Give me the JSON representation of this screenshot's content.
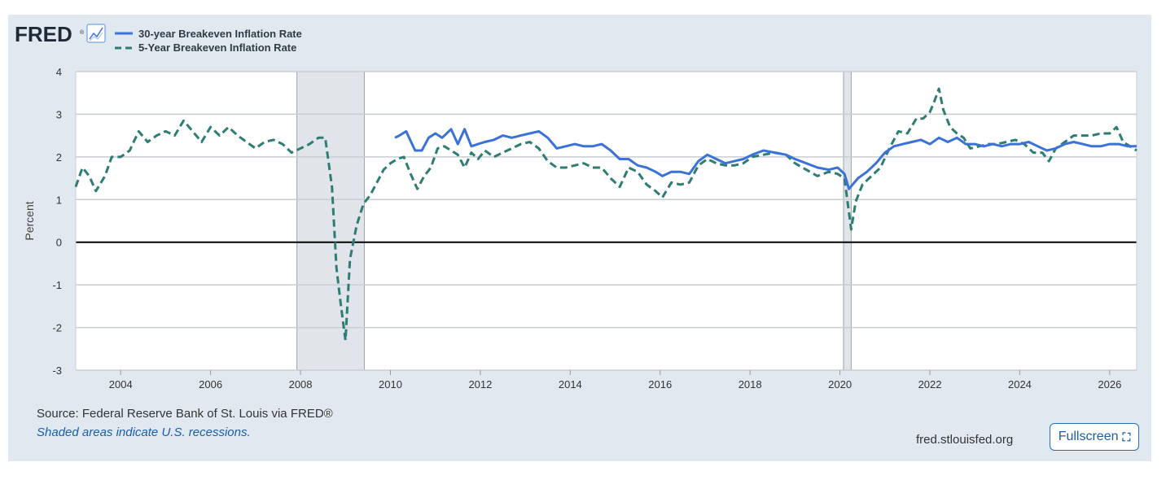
{
  "brand": {
    "logo": "FRED",
    "logo_mark": "®",
    "graph_icon": "chart-line-icon"
  },
  "footer": {
    "source": "Source: Federal Reserve Bank of St. Louis via FRED®",
    "shaded_note": "Shaded areas indicate U.S. recessions.",
    "site": "fred.stlouisfed.org",
    "fullscreen_label": "Fullscreen",
    "fullscreen_icon": "expand-icon"
  },
  "colors": {
    "series30": "#3a72d8",
    "series5": "#2e7d74",
    "recession": "#e1e4e8",
    "zero_line": "#000000"
  },
  "chart_data": {
    "type": "line",
    "ylabel": "Percent",
    "xlim": [
      2003.0,
      2026.6
    ],
    "ylim": [
      -3,
      4
    ],
    "yticks": [
      -3,
      -2,
      -1,
      0,
      1,
      2,
      3,
      4
    ],
    "xticks": [
      2004,
      2006,
      2008,
      2010,
      2012,
      2014,
      2016,
      2018,
      2020,
      2022,
      2024,
      2026
    ],
    "grid": true,
    "legend_position": "top-left",
    "recessions": [
      [
        2007.92,
        2009.42
      ],
      [
        2020.08,
        2020.25
      ]
    ],
    "series": [
      {
        "name": "30-year Breakeven Inflation Rate",
        "style": "solid",
        "x": [
          2010.1,
          2010.2,
          2010.35,
          2010.55,
          2010.7,
          2010.85,
          2011.0,
          2011.15,
          2011.35,
          2011.5,
          2011.65,
          2011.8,
          2011.95,
          2012.1,
          2012.3,
          2012.5,
          2012.7,
          2012.9,
          2013.1,
          2013.3,
          2013.5,
          2013.7,
          2013.9,
          2014.1,
          2014.3,
          2014.5,
          2014.7,
          2014.9,
          2015.1,
          2015.3,
          2015.5,
          2015.7,
          2015.9,
          2016.05,
          2016.25,
          2016.45,
          2016.65,
          2016.85,
          2017.05,
          2017.25,
          2017.45,
          2017.65,
          2017.85,
          2018.05,
          2018.3,
          2018.55,
          2018.8,
          2019.0,
          2019.25,
          2019.5,
          2019.75,
          2019.95,
          2020.1,
          2020.2,
          2020.4,
          2020.6,
          2020.8,
          2021.0,
          2021.2,
          2021.4,
          2021.6,
          2021.8,
          2022.0,
          2022.2,
          2022.4,
          2022.6,
          2022.8,
          2023.0,
          2023.2,
          2023.4,
          2023.6,
          2023.8,
          2024.0,
          2024.2,
          2024.4,
          2024.6,
          2024.8,
          2025.0,
          2025.2,
          2025.4,
          2025.6,
          2025.8,
          2026.0,
          2026.2,
          2026.4,
          2026.6
        ],
        "values": [
          2.45,
          2.5,
          2.6,
          2.15,
          2.15,
          2.45,
          2.55,
          2.45,
          2.65,
          2.3,
          2.65,
          2.25,
          2.3,
          2.35,
          2.4,
          2.5,
          2.45,
          2.5,
          2.55,
          2.6,
          2.45,
          2.2,
          2.25,
          2.3,
          2.25,
          2.25,
          2.3,
          2.15,
          1.95,
          1.95,
          1.8,
          1.75,
          1.65,
          1.55,
          1.65,
          1.65,
          1.6,
          1.9,
          2.05,
          1.95,
          1.85,
          1.9,
          1.95,
          2.05,
          2.15,
          2.1,
          2.05,
          1.95,
          1.85,
          1.75,
          1.7,
          1.75,
          1.6,
          1.25,
          1.5,
          1.65,
          1.85,
          2.1,
          2.25,
          2.3,
          2.35,
          2.4,
          2.3,
          2.45,
          2.35,
          2.45,
          2.3,
          2.3,
          2.25,
          2.3,
          2.25,
          2.3,
          2.3,
          2.35,
          2.25,
          2.15,
          2.2,
          2.3,
          2.35,
          2.3,
          2.25,
          2.25,
          2.3,
          2.3,
          2.25,
          2.25
        ]
      },
      {
        "name": "5-Year Breakeven Inflation Rate",
        "style": "dashed",
        "x": [
          2003.0,
          2003.15,
          2003.3,
          2003.45,
          2003.65,
          2003.8,
          2004.0,
          2004.2,
          2004.4,
          2004.6,
          2004.8,
          2005.0,
          2005.2,
          2005.4,
          2005.6,
          2005.8,
          2006.0,
          2006.2,
          2006.4,
          2006.6,
          2006.8,
          2007.0,
          2007.2,
          2007.4,
          2007.6,
          2007.8,
          2008.0,
          2008.2,
          2008.4,
          2008.55,
          2008.7,
          2008.8,
          2008.9,
          2009.0,
          2009.1,
          2009.25,
          2009.4,
          2009.55,
          2009.7,
          2009.85,
          2010.0,
          2010.15,
          2010.3,
          2010.45,
          2010.6,
          2010.75,
          2010.9,
          2011.05,
          2011.2,
          2011.35,
          2011.5,
          2011.65,
          2011.8,
          2011.95,
          2012.1,
          2012.3,
          2012.5,
          2012.7,
          2012.9,
          2013.1,
          2013.3,
          2013.5,
          2013.7,
          2013.9,
          2014.1,
          2014.3,
          2014.5,
          2014.7,
          2014.9,
          2015.1,
          2015.3,
          2015.5,
          2015.7,
          2015.9,
          2016.05,
          2016.25,
          2016.45,
          2016.65,
          2016.85,
          2017.05,
          2017.25,
          2017.45,
          2017.65,
          2017.85,
          2018.05,
          2018.3,
          2018.55,
          2018.8,
          2019.0,
          2019.25,
          2019.5,
          2019.75,
          2019.95,
          2020.1,
          2020.2,
          2020.25,
          2020.35,
          2020.5,
          2020.7,
          2020.9,
          2021.1,
          2021.3,
          2021.5,
          2021.7,
          2021.85,
          2022.0,
          2022.1,
          2022.2,
          2022.3,
          2022.45,
          2022.6,
          2022.75,
          2022.9,
          2023.1,
          2023.3,
          2023.5,
          2023.7,
          2023.9,
          2024.1,
          2024.3,
          2024.5,
          2024.65,
          2024.8,
          2025.0,
          2025.2,
          2025.4,
          2025.6,
          2025.8,
          2026.0,
          2026.15,
          2026.3,
          2026.45,
          2026.6
        ],
        "values": [
          1.3,
          1.75,
          1.55,
          1.2,
          1.55,
          2.0,
          2.0,
          2.15,
          2.6,
          2.35,
          2.5,
          2.6,
          2.5,
          2.85,
          2.6,
          2.35,
          2.7,
          2.5,
          2.7,
          2.5,
          2.35,
          2.2,
          2.35,
          2.4,
          2.3,
          2.1,
          2.2,
          2.3,
          2.45,
          2.45,
          1.3,
          -0.6,
          -1.5,
          -2.3,
          -0.4,
          0.4,
          0.9,
          1.1,
          1.4,
          1.7,
          1.85,
          1.95,
          2.0,
          1.6,
          1.25,
          1.55,
          1.75,
          2.2,
          2.25,
          2.15,
          2.05,
          1.75,
          2.1,
          1.95,
          2.15,
          2.0,
          2.1,
          2.2,
          2.3,
          2.35,
          2.2,
          1.9,
          1.75,
          1.75,
          1.8,
          1.85,
          1.75,
          1.75,
          1.5,
          1.3,
          1.75,
          1.65,
          1.35,
          1.2,
          1.05,
          1.4,
          1.35,
          1.4,
          1.8,
          1.95,
          1.85,
          1.8,
          1.8,
          1.85,
          2.0,
          2.05,
          2.1,
          2.05,
          1.85,
          1.7,
          1.55,
          1.65,
          1.6,
          1.5,
          0.7,
          0.3,
          0.95,
          1.35,
          1.55,
          1.75,
          2.2,
          2.6,
          2.55,
          2.9,
          2.9,
          3.05,
          3.3,
          3.6,
          3.1,
          2.7,
          2.55,
          2.45,
          2.2,
          2.25,
          2.3,
          2.3,
          2.35,
          2.4,
          2.3,
          2.1,
          2.1,
          1.9,
          2.2,
          2.35,
          2.5,
          2.5,
          2.5,
          2.55,
          2.55,
          2.7,
          2.35,
          2.25,
          2.15
        ]
      }
    ]
  }
}
